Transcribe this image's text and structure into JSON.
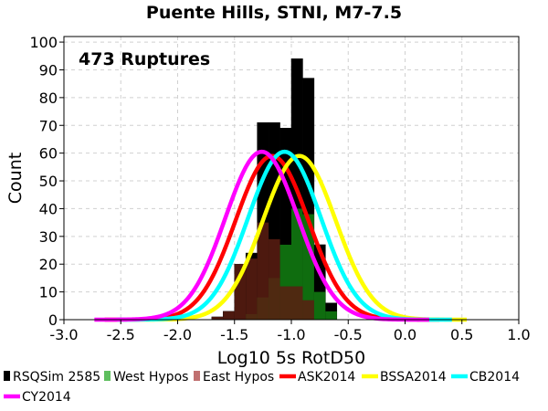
{
  "chart_data": {
    "type": "bar",
    "title": "Puente Hills, STNI, M7-7.5",
    "xlabel": "Log10 5s RotD50",
    "ylabel": "Count",
    "xlim": [
      -3.0,
      1.0
    ],
    "ylim": [
      0,
      102
    ],
    "x_ticks": [
      {
        "value": -3.0,
        "label": "-3.0"
      },
      {
        "value": -2.5,
        "label": "-2.5"
      },
      {
        "value": -2.0,
        "label": "-2.0"
      },
      {
        "value": -1.5,
        "label": "-1.5"
      },
      {
        "value": -1.0,
        "label": "-1.0"
      },
      {
        "value": -0.5,
        "label": "-0.5"
      },
      {
        "value": 0.0,
        "label": "0.0"
      },
      {
        "value": 0.5,
        "label": "0.5"
      },
      {
        "value": 1.0,
        "label": "1.0"
      }
    ],
    "y_ticks": [
      {
        "value": 0,
        "label": "0"
      },
      {
        "value": 10,
        "label": "10"
      },
      {
        "value": 20,
        "label": "20"
      },
      {
        "value": 30,
        "label": "30"
      },
      {
        "value": 40,
        "label": "40"
      },
      {
        "value": 50,
        "label": "50"
      },
      {
        "value": 60,
        "label": "60"
      },
      {
        "value": 70,
        "label": "70"
      },
      {
        "value": 80,
        "label": "80"
      },
      {
        "value": 90,
        "label": "90"
      },
      {
        "value": 100,
        "label": "100"
      }
    ],
    "grid": true,
    "annotation": "473 Ruptures",
    "bin_width": 0.1,
    "histogram": {
      "bin_centers": [
        -1.65,
        -1.55,
        -1.45,
        -1.35,
        -1.25,
        -1.15,
        -1.05,
        -0.95,
        -0.85,
        -0.75,
        -0.65
      ],
      "series": [
        {
          "name": "RSQSim 2585",
          "color": "#000000",
          "values": [
            1,
            3,
            20,
            24,
            71,
            71,
            69,
            94,
            87,
            27,
            6
          ]
        },
        {
          "name": "West Hypos",
          "color": "#5fbf5f",
          "values": [
            0,
            0,
            0,
            2,
            8,
            15,
            27,
            40,
            38,
            10,
            3
          ]
        },
        {
          "name": "East Hypos",
          "color": "#c07070",
          "values": [
            1,
            3,
            20,
            22,
            35,
            29,
            12,
            12,
            7,
            0,
            0
          ]
        }
      ]
    },
    "curves": [
      {
        "name": "ASK2014",
        "color": "#ff0000",
        "mean": -1.17,
        "sigma": 0.32,
        "peak": 59
      },
      {
        "name": "BSSA2014",
        "color": "#ffff00",
        "mean": -0.93,
        "sigma": 0.32,
        "peak": 59
      },
      {
        "name": "CB2014",
        "color": "#00ffff",
        "mean": -1.06,
        "sigma": 0.32,
        "peak": 60.5
      },
      {
        "name": "CY2014",
        "color": "#ff00ff",
        "mean": -1.26,
        "sigma": 0.32,
        "peak": 60.5
      }
    ],
    "legend_position": "bottom"
  }
}
